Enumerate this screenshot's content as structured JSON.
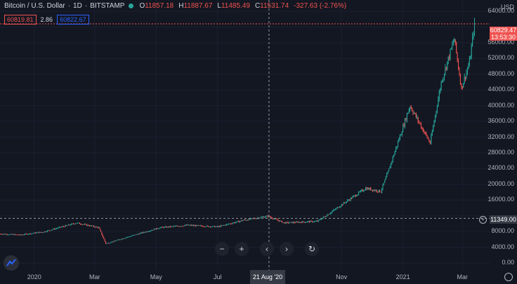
{
  "header": {
    "symbol": "Bitcoin / U.S. Dollar",
    "interval": "1D",
    "exchange": "BITSTAMP",
    "ohlc": [
      {
        "k": "O",
        "v": "11857.18"
      },
      {
        "k": "H",
        "v": "11887.67"
      },
      {
        "k": "L",
        "v": "11485.49"
      },
      {
        "k": "C",
        "v": "11531.74"
      }
    ],
    "change": "-327.63 (-2.76%)"
  },
  "trade": {
    "sell": "60819.81",
    "spread": "2.86",
    "buy": "60822.67"
  },
  "price_axis": {
    "currency": "USD",
    "last_price": "60829.47",
    "countdown": "13:53:30",
    "crosshair_price": "11349.00"
  },
  "time_axis": {
    "crosshair_date": "21 Aug '20"
  },
  "colors": {
    "background": "#131722",
    "up": "#26a69a",
    "down": "#ef5350",
    "grid": "#1c2030"
  },
  "icons": [
    "zoom-out-icon",
    "zoom-in-icon",
    "scroll-left-icon",
    "scroll-right-icon",
    "reset-icon",
    "tradingview-logo-icon",
    "settings-icon"
  ],
  "nav": {
    "minus": "−",
    "plus": "+",
    "left": "‹",
    "right": "›",
    "reset": "↻"
  },
  "chart_data": {
    "type": "candlestick",
    "x_type": "date",
    "x_tick_labels": [
      {
        "date": "2020-01-01",
        "label": "2020"
      },
      {
        "date": "2020-03-01",
        "label": "Mar"
      },
      {
        "date": "2020-05-01",
        "label": "May"
      },
      {
        "date": "2020-07-01",
        "label": "Jul"
      },
      {
        "date": "2020-11-01",
        "label": "Nov"
      },
      {
        "date": "2021-01-01",
        "label": "2021"
      },
      {
        "date": "2021-03-01",
        "label": "Mar"
      }
    ],
    "y_ticks": [
      0,
      4000,
      8000,
      12000,
      16000,
      20000,
      24000,
      28000,
      32000,
      36000,
      40000,
      44000,
      48000,
      52000,
      56000,
      60000,
      64000
    ],
    "y_tick_labels": [
      "0.00",
      "4000.00",
      "8000.00",
      "",
      "16000.00",
      "20000.00",
      "24000.00",
      "28000.00",
      "32000.00",
      "36000.00",
      "40000.00",
      "44000.00",
      "48000.00",
      "52000.00",
      "56000.00",
      "",
      "64000.00"
    ],
    "ylim": [
      0,
      66000
    ],
    "xlim": [
      "2019-11-28",
      "2021-03-28"
    ],
    "grid": true,
    "price_path": [
      [
        "2019-11-28",
        7400
      ],
      [
        "2019-12-18",
        7150
      ],
      [
        "2020-01-10",
        7900
      ],
      [
        "2020-02-12",
        10200
      ],
      [
        "2020-03-05",
        9000
      ],
      [
        "2020-03-12",
        4900
      ],
      [
        "2020-04-01",
        6500
      ],
      [
        "2020-05-05",
        9000
      ],
      [
        "2020-06-01",
        9600
      ],
      [
        "2020-07-01",
        9200
      ],
      [
        "2020-07-27",
        10900
      ],
      [
        "2020-08-20",
        11900
      ],
      [
        "2020-09-05",
        10200
      ],
      [
        "2020-10-08",
        10600
      ],
      [
        "2020-10-21",
        12800
      ],
      [
        "2020-11-05",
        15500
      ],
      [
        "2020-11-25",
        19000
      ],
      [
        "2020-12-10",
        18200
      ],
      [
        "2020-12-17",
        23000
      ],
      [
        "2021-01-08",
        40000
      ],
      [
        "2021-01-28",
        30500
      ],
      [
        "2021-02-08",
        46000
      ],
      [
        "2021-02-21",
        57000
      ],
      [
        "2021-02-28",
        44500
      ],
      [
        "2021-03-08",
        51000
      ],
      [
        "2021-03-13",
        61000
      ]
    ],
    "highlighted_candle": {
      "date": "2020-08-21",
      "open": 11857.18,
      "high": 11887.67,
      "low": 11485.49,
      "close": 11531.74
    }
  }
}
